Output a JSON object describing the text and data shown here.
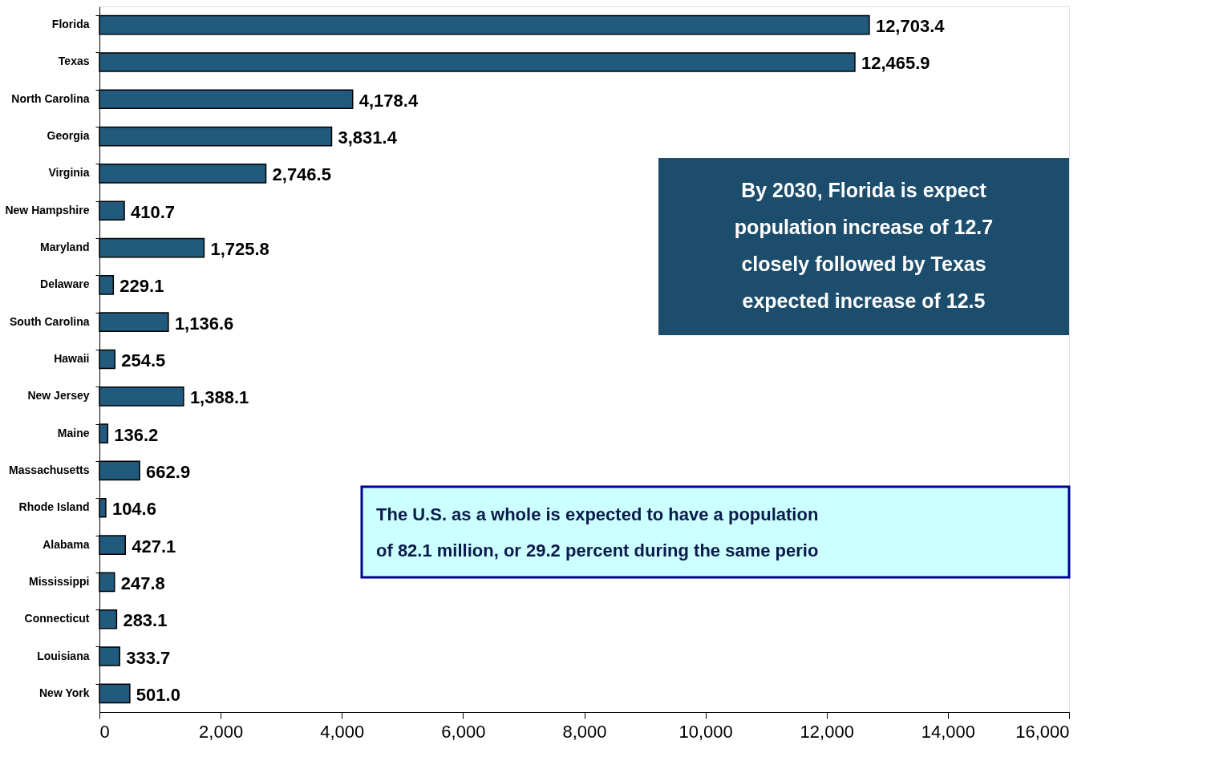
{
  "chart_data": {
    "type": "bar",
    "orientation": "horizontal",
    "categories": [
      "Florida",
      "Texas",
      "North Carolina",
      "Georgia",
      "Virginia",
      "New Hampshire",
      "Maryland",
      "Delaware",
      "South Carolina",
      "Hawaii",
      "New Jersey",
      "Maine",
      "Massachusetts",
      "Rhode Island",
      "Alabama",
      "Mississippi",
      "Connecticut",
      "Louisiana",
      "New York"
    ],
    "values": [
      12703.4,
      12465.9,
      4178.4,
      3831.4,
      2746.5,
      410.7,
      1725.8,
      229.1,
      1136.6,
      254.5,
      1388.1,
      136.2,
      662.9,
      104.6,
      427.1,
      247.8,
      283.1,
      333.7,
      501.0
    ],
    "color": "#215a7c",
    "xlim": [
      0,
      16000
    ],
    "xticks": [
      {
        "value": 0,
        "label": "0"
      },
      {
        "value": 2000,
        "label": "2,000"
      },
      {
        "value": 4000,
        "label": "4,000"
      },
      {
        "value": 6000,
        "label": "6,000"
      },
      {
        "value": 8000,
        "label": "8,000"
      },
      {
        "value": 10000,
        "label": "10,000"
      },
      {
        "value": 12000,
        "label": "12,000"
      },
      {
        "value": 14000,
        "label": "14,000"
      },
      {
        "value": 16000,
        "label": "16,000"
      }
    ],
    "value_labels": [
      "12,703.4",
      "12,465.9",
      "4,178.4",
      "3,831.4",
      "2,746.5",
      "410.7",
      "1,725.8",
      "229.1",
      "1,136.6",
      "254.5",
      "1,388.1",
      "136.2",
      "662.9",
      "104.6",
      "427.1",
      "247.8",
      "283.1",
      "333.7",
      "501.0"
    ],
    "grid": false,
    "annotations": [
      "By 2030, Florida is expect\npopulation increase of 12.7\nclosely followed by Texas\nexpected increase of 12.5",
      "The U.S. as a whole is expected to have a population\nof 82.1 million, or 29.2 percent during the same perio"
    ]
  }
}
